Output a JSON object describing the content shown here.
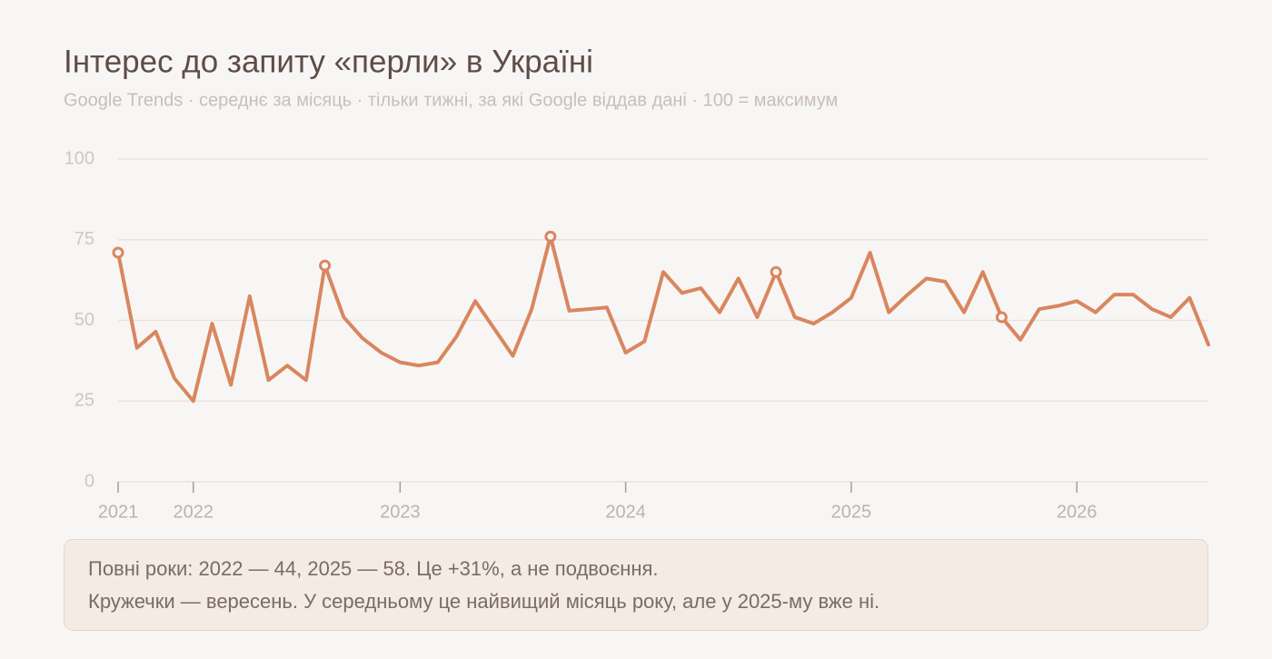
{
  "chart_data": {
    "type": "line",
    "title": "Інтерес до запиту «перли» в Україні",
    "subtitle": "Google Trends · середнє за місяць · тільки тижні, за які Google віддав дані · 100 = максимум",
    "categories": [
      "2021",
      null,
      null,
      null,
      "2022",
      null,
      null,
      null,
      null,
      null,
      null,
      null,
      null,
      null,
      null,
      "2023",
      null,
      null,
      null,
      null,
      null,
      null,
      null,
      null,
      null,
      null,
      null,
      "2024",
      null,
      null,
      null,
      null,
      null,
      null,
      null,
      null,
      null,
      null,
      null,
      "2025",
      null,
      null,
      null,
      null,
      null,
      null,
      null,
      null,
      null,
      null,
      null,
      "2026",
      null,
      null,
      null,
      null,
      null,
      null,
      null
    ],
    "series": [
      {
        "name": "перли",
        "color": "#d9865f",
        "values": [
          71,
          41.5,
          46.5,
          32,
          25,
          49,
          30,
          57.5,
          31.5,
          36,
          31.5,
          67,
          51,
          44.5,
          40,
          37,
          36,
          37,
          45,
          56,
          47.5,
          39,
          53.5,
          76,
          53,
          53.5,
          54,
          40,
          43.5,
          65,
          58.5,
          60,
          52.5,
          63,
          51,
          65,
          51,
          49,
          52.5,
          57,
          71,
          52.5,
          58,
          63,
          62,
          52.5,
          65,
          51,
          44,
          53.5,
          54.5,
          56,
          52.5,
          58,
          58,
          53.5,
          51,
          57,
          42.5
        ],
        "marker_indices": [
          0,
          11,
          23,
          35,
          47
        ]
      }
    ],
    "ylim": [
      0,
      100
    ],
    "yticks": [
      0,
      25,
      50,
      75,
      100
    ],
    "grid": true,
    "note": [
      "Повні роки: 2022 — 44, 2025 — 58. Це +31%, а не подвоєння.",
      "Кружечки — вересень. У середньому це найвищий місяць року, але у 2025-му вже ні."
    ]
  }
}
